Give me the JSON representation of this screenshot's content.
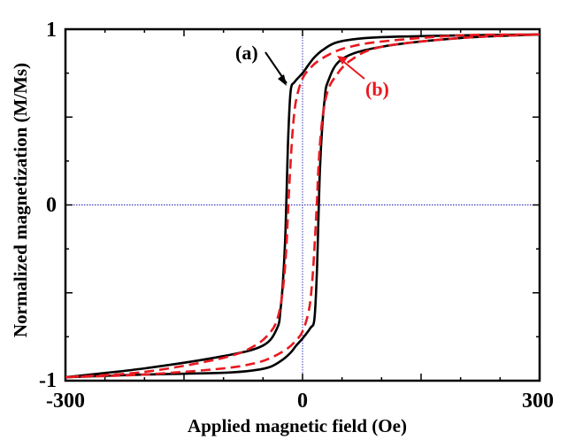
{
  "chart_data": {
    "type": "line",
    "title": "",
    "xlabel": "Applied magnetic field (Oe)",
    "ylabel": "Normalized magnetization (M/Ms)",
    "xlim": [
      -300,
      300
    ],
    "ylim": [
      -1,
      1
    ],
    "xticks": [
      "-300",
      "0",
      "300"
    ],
    "yticks": [
      "1",
      "0",
      "-1"
    ],
    "reference_lines": [
      {
        "axis": "x",
        "value": 0,
        "style": "dotted",
        "color": "#0000cc"
      },
      {
        "axis": "y",
        "value": 0,
        "style": "dotted",
        "color": "#0000cc"
      }
    ],
    "series": [
      {
        "name": "(a)",
        "color": "#000000",
        "style": "solid",
        "descending": {
          "x": [
            300,
            200,
            100,
            60,
            40,
            25,
            15,
            8,
            0,
            -10,
            -15,
            -18,
            -20,
            -22,
            -25,
            -28,
            -32,
            -50,
            -100,
            -200,
            -300
          ],
          "y": [
            0.97,
            0.965,
            0.955,
            0.94,
            0.92,
            0.88,
            0.84,
            0.8,
            0.75,
            0.7,
            0.65,
            0.4,
            0.1,
            -0.2,
            -0.45,
            -0.6,
            -0.7,
            -0.8,
            -0.86,
            -0.93,
            -0.98
          ]
        },
        "ascending": {
          "x": [
            -300,
            -200,
            -100,
            -60,
            -40,
            -25,
            -15,
            -8,
            0,
            10,
            15,
            18,
            20,
            22,
            25,
            28,
            32,
            50,
            100,
            200,
            300
          ],
          "y": [
            -0.98,
            -0.965,
            -0.955,
            -0.94,
            -0.92,
            -0.88,
            -0.84,
            -0.8,
            -0.76,
            -0.7,
            -0.65,
            -0.4,
            -0.1,
            0.2,
            0.45,
            0.6,
            0.7,
            0.83,
            0.9,
            0.95,
            0.97
          ]
        }
      },
      {
        "name": "(b)",
        "color": "#e8191f",
        "style": "dashed",
        "descending": {
          "x": [
            300,
            200,
            100,
            60,
            40,
            20,
            10,
            0,
            -8,
            -12,
            -15,
            -18,
            -20,
            -23,
            -27,
            -32,
            -40,
            -60,
            -100,
            -200,
            -300
          ],
          "y": [
            0.97,
            0.965,
            0.93,
            0.9,
            0.87,
            0.82,
            0.78,
            0.72,
            0.6,
            0.45,
            0.25,
            0.0,
            -0.2,
            -0.4,
            -0.55,
            -0.65,
            -0.72,
            -0.8,
            -0.87,
            -0.95,
            -0.98
          ]
        },
        "ascending": {
          "x": [
            -300,
            -200,
            -100,
            -60,
            -40,
            -20,
            -10,
            0,
            8,
            12,
            15,
            18,
            20,
            23,
            27,
            32,
            40,
            60,
            100,
            200,
            300
          ],
          "y": [
            -0.98,
            -0.965,
            -0.93,
            -0.9,
            -0.87,
            -0.82,
            -0.78,
            -0.72,
            -0.6,
            -0.45,
            -0.25,
            0.0,
            0.2,
            0.4,
            0.55,
            0.65,
            0.72,
            0.82,
            0.9,
            0.95,
            0.97
          ]
        }
      }
    ],
    "annotations": [
      {
        "text": "(a)",
        "color": "#000000",
        "series": "(a)"
      },
      {
        "text": "(b)",
        "color": "#e8191f",
        "series": "(b)"
      }
    ]
  }
}
